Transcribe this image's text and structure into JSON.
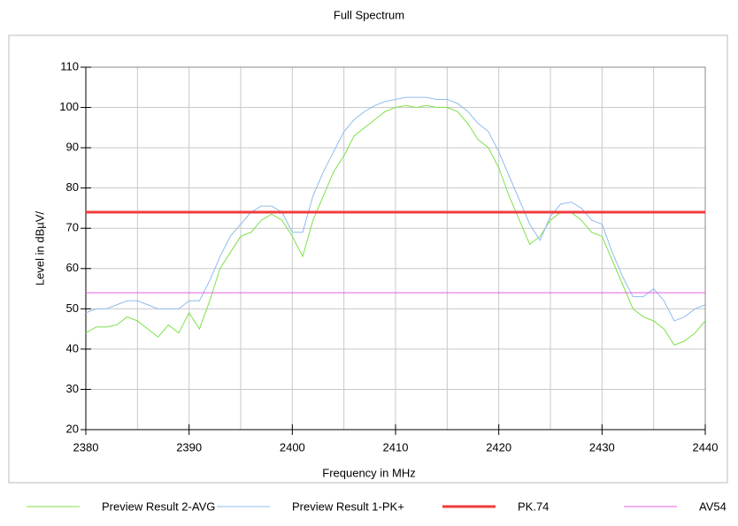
{
  "chart_data": {
    "type": "line",
    "title": "Full Spectrum",
    "x_label": "Frequency in MHz",
    "y_label": "Level in dBµV/",
    "xlim": [
      2380,
      2440
    ],
    "xticks": [
      2380,
      2390,
      2400,
      2410,
      2420,
      2430,
      2440
    ],
    "xgrid": [
      2385,
      2390,
      2395,
      2400,
      2405,
      2410,
      2415,
      2420,
      2425,
      2430,
      2435
    ],
    "ylim": [
      20,
      110
    ],
    "yticks": [
      20,
      30,
      40,
      50,
      60,
      70,
      80,
      90,
      100,
      110
    ],
    "grid": true,
    "series": [
      {
        "name": "Preview Result 2-AVG",
        "color": "#7ee04a",
        "width": 1,
        "x": [
          2380,
          2381,
          2382,
          2383,
          2384,
          2385,
          2386,
          2387,
          2388,
          2389,
          2390,
          2391,
          2392,
          2393,
          2394,
          2395,
          2396,
          2397,
          2398,
          2399,
          2400,
          2401,
          2402,
          2403,
          2404,
          2405,
          2406,
          2407,
          2408,
          2409,
          2410,
          2411,
          2412,
          2413,
          2414,
          2415,
          2416,
          2417,
          2418,
          2419,
          2420,
          2421,
          2422,
          2423,
          2424,
          2425,
          2426,
          2427,
          2428,
          2429,
          2430,
          2431,
          2432,
          2433,
          2434,
          2435,
          2436,
          2437,
          2438,
          2439,
          2440
        ],
        "values": [
          44,
          45.5,
          45.5,
          46,
          48,
          47,
          45,
          43,
          46,
          44,
          49,
          45,
          52,
          60,
          64,
          68,
          69,
          72,
          73.5,
          72,
          68,
          63,
          72,
          78,
          84,
          88,
          93,
          95,
          97,
          99,
          100,
          100.5,
          100,
          100.5,
          100,
          100,
          99,
          96,
          92,
          90,
          85,
          78,
          72,
          66,
          68,
          72,
          74,
          74,
          72,
          69,
          68,
          62,
          56,
          50,
          48,
          47,
          45,
          41,
          42,
          44,
          47
        ]
      },
      {
        "name": "Preview Result 1-PK+",
        "color": "#8fbcec",
        "width": 1,
        "x": [
          2380,
          2381,
          2382,
          2383,
          2384,
          2385,
          2386,
          2387,
          2388,
          2389,
          2390,
          2391,
          2392,
          2393,
          2394,
          2395,
          2396,
          2397,
          2398,
          2399,
          2400,
          2401,
          2402,
          2403,
          2404,
          2405,
          2406,
          2407,
          2408,
          2409,
          2410,
          2411,
          2412,
          2413,
          2414,
          2415,
          2416,
          2417,
          2418,
          2419,
          2420,
          2421,
          2422,
          2423,
          2424,
          2425,
          2426,
          2427,
          2428,
          2429,
          2430,
          2431,
          2432,
          2433,
          2434,
          2435,
          2436,
          2437,
          2438,
          2439,
          2440
        ],
        "values": [
          49,
          50,
          50,
          51,
          52,
          52,
          51,
          50,
          50,
          50,
          52,
          52,
          57,
          63,
          68,
          71,
          74,
          75.5,
          75.5,
          74,
          69,
          69,
          78,
          84,
          89,
          94,
          97,
          99,
          100.5,
          101.5,
          102,
          102.5,
          102.5,
          102.5,
          102,
          102,
          101,
          99,
          96,
          94,
          89,
          83,
          77,
          71,
          67,
          73,
          76,
          76.5,
          75,
          72,
          71,
          64,
          58,
          53,
          53,
          55,
          52,
          47,
          48,
          50,
          51
        ]
      },
      {
        "name": "PK.74",
        "color": "#f03c3c",
        "width": 3,
        "x": [
          2380,
          2440
        ],
        "values": [
          74,
          74
        ]
      },
      {
        "name": "AV54",
        "color": "#e060e0",
        "width": 1,
        "x": [
          2380,
          2440
        ],
        "values": [
          54,
          54
        ]
      }
    ]
  }
}
